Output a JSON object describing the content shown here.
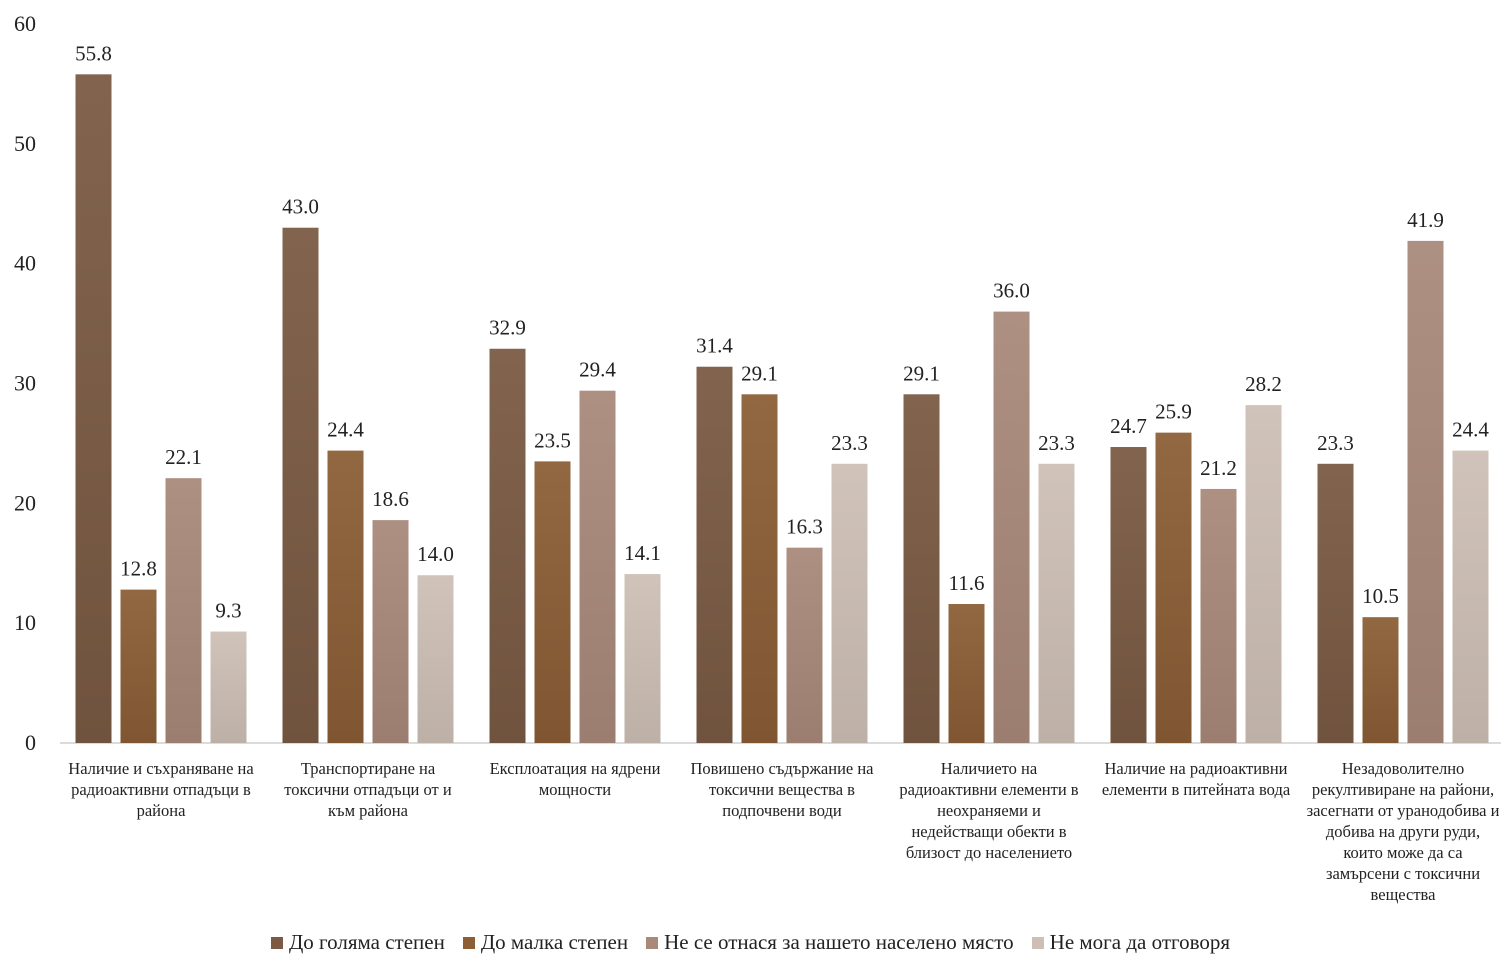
{
  "chart_data": {
    "type": "bar",
    "title": "",
    "xlabel": "",
    "ylabel": "",
    "ylim": [
      0,
      60
    ],
    "yticks": [
      0,
      10,
      20,
      30,
      40,
      50,
      60
    ],
    "grid": false,
    "legend_position": "bottom",
    "categories": [
      "Наличие и съхраняване на радиоактивни отпадъци в района",
      "Транспортиране на токсични отпадъци от и към района",
      "Експлоатация на ядрени мощности",
      "Повишено съдържание на токсични вещества в подпочвени води",
      "Наличието на радиоактивни елементи в неохраняеми и недействащи обекти в близост до населението",
      "Наличие на радиоактивни елементи в питейната вода",
      "Незадоволително рекултивиране на райони, засегнати от уранодобива и добива на други руди, които може да са замърсени с токсични вещества"
    ],
    "series": [
      {
        "name": "До голяма степен",
        "color": "#7a5a43",
        "values": [
          55.8,
          43.0,
          32.9,
          31.4,
          29.1,
          24.7,
          23.3
        ]
      },
      {
        "name": "До малка степен",
        "color": "#8b5e36",
        "values": [
          12.8,
          24.4,
          23.5,
          29.1,
          11.6,
          25.9,
          10.5
        ]
      },
      {
        "name": "Не се отнася за нашето населено място",
        "color": "#a8897a",
        "values": [
          22.1,
          18.6,
          29.4,
          16.3,
          36.0,
          21.2,
          41.9
        ]
      },
      {
        "name": "Не мога да отговоря",
        "color": "#cdbfb6",
        "values": [
          9.3,
          14.0,
          14.1,
          23.3,
          23.3,
          28.2,
          24.4
        ]
      }
    ],
    "value_labels": [
      [
        "55.8",
        "43.0",
        "32.9",
        "31.4",
        "29.1",
        "24.7",
        "23.3"
      ],
      [
        "12.8",
        "24.4",
        "23.5",
        "29.1",
        "11.6",
        "25.9",
        "10.5"
      ],
      [
        "22.1",
        "18.6",
        "29.4",
        "16.3",
        "36.0",
        "21.2",
        "41.9"
      ],
      [
        "9.3",
        "14.0",
        "14.1",
        "23.3",
        "23.3",
        "28.2",
        "24.4"
      ]
    ]
  }
}
